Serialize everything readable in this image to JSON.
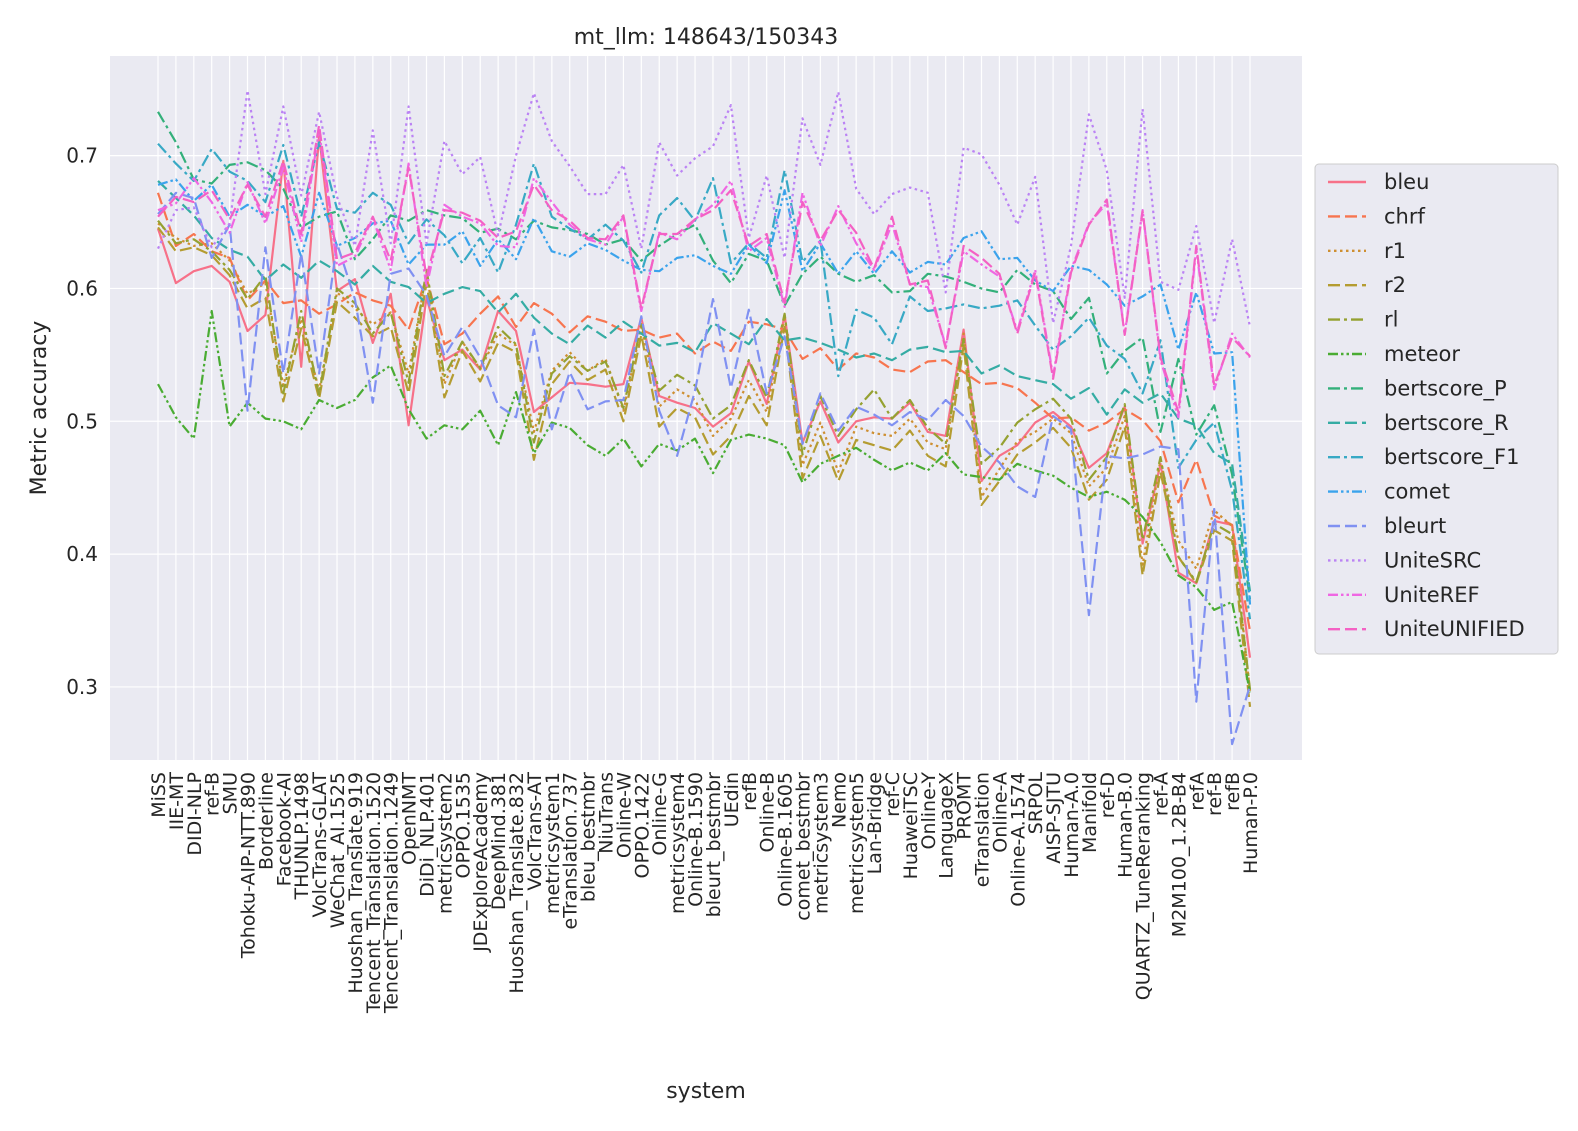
{
  "chart_data": {
    "type": "line",
    "title": "mt_llm: 148643/150343",
    "xlabel": "system",
    "ylabel": "Metric accuracy",
    "ylim": [
      0.245,
      0.775
    ],
    "yticks": [
      0.3,
      0.4,
      0.5,
      0.6,
      0.7
    ],
    "grid": true,
    "legend_position": "right",
    "categories": [
      "MiSS",
      "IIE-MT",
      "DIDI-NLP",
      "ref-B",
      "SMU",
      "Tohoku-AIP-NTT.890",
      "Borderline",
      "Facebook-AI",
      "THUNLP.1498",
      "VolcTrans-GLAT",
      "WeChat_AI.1525",
      "Huoshan_Translate.919",
      "Tencent_Translation.1520",
      "Tencent_Translation.1249",
      "OpenNMT",
      "DiDi_NLP.401",
      "metricsystem2",
      "OPPO.1535",
      "JDExploreAcademy",
      "DeepMind.381",
      "Huoshan_Translate.832",
      "VolcTrans-AT",
      "metricsystem1",
      "eTranslation.737",
      "bleu_bestmbr",
      "NiuTrans",
      "Online-W",
      "OPPO.1422",
      "Online-G",
      "metricsystem4",
      "Online-B.1590",
      "bleurt_bestmbr",
      "UEdin",
      "refB",
      "Online-B",
      "Online-B.1605",
      "comet_bestmbr",
      "metricsystem3",
      "Nemo",
      "metricsystem5",
      "Lan-Bridge",
      "ref-C",
      "HuaweiTSC",
      "Online-Y",
      "LanguageX",
      "PROMT",
      "eTranslation",
      "Online-A",
      "Online-A.1574",
      "SRPOL",
      "AISP-SJTU",
      "Human-A.0",
      "Manifold",
      "ref-D",
      "Human-B.0",
      "QUARTZ_TuneReranking",
      "ref-A",
      "M2M100_1.2B-B4",
      "refA",
      "ref-B",
      "refB",
      "Human-P.0"
    ],
    "series": [
      {
        "name": "bleu",
        "color": "#f77189",
        "dash": "solid",
        "values": [
          0.645,
          0.604,
          0.613,
          0.617,
          0.605,
          0.568,
          0.58,
          0.696,
          0.541,
          0.715,
          0.598,
          0.607,
          0.559,
          0.596,
          0.497,
          0.593,
          0.546,
          0.554,
          0.539,
          0.583,
          0.568,
          0.507,
          0.518,
          0.529,
          0.528,
          0.526,
          0.528,
          0.578,
          0.519,
          0.514,
          0.51,
          0.496,
          0.506,
          0.545,
          0.513,
          0.58,
          0.484,
          0.515,
          0.484,
          0.5,
          0.503,
          0.502,
          0.514,
          0.492,
          0.489,
          0.569,
          0.455,
          0.474,
          0.482,
          0.499,
          0.507,
          0.496,
          0.465,
          0.476,
          0.511,
          0.408,
          0.468,
          0.386,
          0.378,
          0.425,
          0.422,
          0.322
        ]
      },
      {
        "name": "chrf",
        "color": "#f7754f",
        "dash": "dash",
        "values": [
          0.672,
          0.632,
          0.641,
          0.628,
          0.623,
          0.591,
          0.606,
          0.589,
          0.591,
          0.581,
          0.588,
          0.597,
          0.591,
          0.587,
          0.569,
          0.608,
          0.558,
          0.566,
          0.581,
          0.594,
          0.571,
          0.589,
          0.581,
          0.567,
          0.579,
          0.575,
          0.568,
          0.569,
          0.563,
          0.566,
          0.551,
          0.56,
          0.553,
          0.575,
          0.573,
          0.569,
          0.547,
          0.555,
          0.539,
          0.551,
          0.548,
          0.539,
          0.537,
          0.545,
          0.546,
          0.537,
          0.528,
          0.529,
          0.525,
          0.514,
          0.502,
          0.503,
          0.493,
          0.499,
          0.509,
          0.501,
          0.485,
          0.439,
          0.471,
          0.429,
          0.422,
          0.342
        ]
      },
      {
        "name": "r1",
        "color": "#ce8f31",
        "dash": "dot",
        "values": [
          0.649,
          0.638,
          0.632,
          0.634,
          0.621,
          0.596,
          0.604,
          0.527,
          0.577,
          0.523,
          0.597,
          0.585,
          0.573,
          0.582,
          0.536,
          0.612,
          0.528,
          0.56,
          0.539,
          0.566,
          0.557,
          0.492,
          0.538,
          0.552,
          0.538,
          0.547,
          0.508,
          0.571,
          0.511,
          0.524,
          0.516,
          0.489,
          0.502,
          0.531,
          0.507,
          0.579,
          0.467,
          0.499,
          0.462,
          0.496,
          0.491,
          0.489,
          0.502,
          0.484,
          0.479,
          0.566,
          0.443,
          0.464,
          0.485,
          0.492,
          0.502,
          0.491,
          0.451,
          0.465,
          0.504,
          0.392,
          0.471,
          0.41,
          0.389,
          0.433,
          0.421,
          0.297
        ]
      },
      {
        "name": "r2",
        "color": "#b49c31",
        "dash": "dash",
        "values": [
          0.646,
          0.628,
          0.631,
          0.625,
          0.61,
          0.585,
          0.593,
          0.515,
          0.57,
          0.517,
          0.59,
          0.578,
          0.564,
          0.571,
          0.521,
          0.604,
          0.518,
          0.553,
          0.53,
          0.559,
          0.552,
          0.471,
          0.528,
          0.545,
          0.531,
          0.539,
          0.5,
          0.565,
          0.496,
          0.51,
          0.503,
          0.475,
          0.489,
          0.519,
          0.497,
          0.571,
          0.457,
          0.489,
          0.455,
          0.486,
          0.482,
          0.478,
          0.493,
          0.474,
          0.466,
          0.557,
          0.437,
          0.455,
          0.475,
          0.484,
          0.495,
          0.48,
          0.441,
          0.456,
          0.496,
          0.384,
          0.462,
          0.398,
          0.378,
          0.418,
          0.41,
          0.285
        ]
      },
      {
        "name": "rl",
        "color": "#95a131",
        "dash": "dashdot",
        "values": [
          0.651,
          0.634,
          0.637,
          0.628,
          0.614,
          0.592,
          0.61,
          0.521,
          0.583,
          0.52,
          0.6,
          0.589,
          0.566,
          0.582,
          0.529,
          0.614,
          0.534,
          0.56,
          0.54,
          0.571,
          0.558,
          0.484,
          0.536,
          0.549,
          0.538,
          0.545,
          0.51,
          0.573,
          0.523,
          0.535,
          0.527,
          0.502,
          0.512,
          0.546,
          0.518,
          0.581,
          0.475,
          0.519,
          0.489,
          0.509,
          0.524,
          0.502,
          0.516,
          0.495,
          0.483,
          0.562,
          0.468,
          0.48,
          0.499,
          0.509,
          0.517,
          0.502,
          0.456,
          0.473,
          0.513,
          0.411,
          0.473,
          0.398,
          0.379,
          0.423,
          0.415,
          0.298
        ]
      },
      {
        "name": "meteor",
        "color": "#4aac33",
        "dash": "dashdotdot",
        "values": [
          0.528,
          0.503,
          0.487,
          0.583,
          0.496,
          0.514,
          0.502,
          0.5,
          0.494,
          0.516,
          0.51,
          0.516,
          0.533,
          0.542,
          0.509,
          0.487,
          0.497,
          0.494,
          0.508,
          0.482,
          0.522,
          0.476,
          0.499,
          0.495,
          0.482,
          0.474,
          0.487,
          0.466,
          0.483,
          0.478,
          0.487,
          0.461,
          0.486,
          0.49,
          0.487,
          0.482,
          0.454,
          0.468,
          0.474,
          0.48,
          0.471,
          0.463,
          0.469,
          0.463,
          0.476,
          0.46,
          0.458,
          0.456,
          0.468,
          0.463,
          0.459,
          0.45,
          0.443,
          0.447,
          0.441,
          0.428,
          0.409,
          0.384,
          0.375,
          0.358,
          0.364,
          0.296
        ]
      },
      {
        "name": "bertscore_P",
        "color": "#33b07a",
        "dash": "dashdot",
        "values": [
          0.733,
          0.71,
          0.682,
          0.679,
          0.693,
          0.695,
          0.689,
          0.675,
          0.646,
          0.654,
          0.658,
          0.622,
          0.637,
          0.655,
          0.651,
          0.659,
          0.655,
          0.653,
          0.642,
          0.645,
          0.637,
          0.651,
          0.646,
          0.644,
          0.641,
          0.633,
          0.637,
          0.621,
          0.632,
          0.641,
          0.648,
          0.621,
          0.604,
          0.626,
          0.621,
          0.587,
          0.611,
          0.624,
          0.611,
          0.605,
          0.61,
          0.597,
          0.598,
          0.611,
          0.609,
          0.605,
          0.6,
          0.597,
          0.614,
          0.603,
          0.598,
          0.577,
          0.593,
          0.536,
          0.553,
          0.563,
          0.492,
          0.547,
          0.49,
          0.512,
          0.46,
          0.366
        ]
      },
      {
        "name": "bertscore_R",
        "color": "#35aca4",
        "dash": "dash",
        "values": [
          0.681,
          0.668,
          0.655,
          0.638,
          0.629,
          0.624,
          0.606,
          0.618,
          0.608,
          0.621,
          0.613,
          0.603,
          0.617,
          0.605,
          0.601,
          0.589,
          0.596,
          0.601,
          0.598,
          0.582,
          0.596,
          0.578,
          0.566,
          0.558,
          0.572,
          0.563,
          0.575,
          0.566,
          0.557,
          0.559,
          0.552,
          0.574,
          0.566,
          0.558,
          0.577,
          0.561,
          0.563,
          0.559,
          0.554,
          0.548,
          0.551,
          0.546,
          0.554,
          0.556,
          0.552,
          0.553,
          0.536,
          0.542,
          0.534,
          0.531,
          0.528,
          0.517,
          0.525,
          0.505,
          0.524,
          0.514,
          0.521,
          0.502,
          0.497,
          0.476,
          0.468,
          0.372
        ]
      },
      {
        "name": "bertscore_F1",
        "color": "#38a9c5",
        "dash": "dashdot",
        "values": [
          0.709,
          0.694,
          0.681,
          0.705,
          0.688,
          0.681,
          0.665,
          0.708,
          0.654,
          0.71,
          0.66,
          0.657,
          0.672,
          0.663,
          0.634,
          0.652,
          0.64,
          0.619,
          0.638,
          0.612,
          0.648,
          0.694,
          0.654,
          0.645,
          0.637,
          0.648,
          0.636,
          0.612,
          0.655,
          0.668,
          0.651,
          0.683,
          0.619,
          0.634,
          0.623,
          0.689,
          0.62,
          0.636,
          0.534,
          0.584,
          0.578,
          0.558,
          0.594,
          0.583,
          0.585,
          0.588,
          0.585,
          0.587,
          0.591,
          0.572,
          0.554,
          0.564,
          0.578,
          0.557,
          0.547,
          0.521,
          0.561,
          0.465,
          0.486,
          0.499,
          0.448,
          0.351
        ]
      },
      {
        "name": "comet",
        "color": "#3ba3ec",
        "dash": "dashdotdot",
        "values": [
          0.678,
          0.682,
          0.666,
          0.678,
          0.654,
          0.663,
          0.654,
          0.662,
          0.624,
          0.672,
          0.632,
          0.638,
          0.649,
          0.651,
          0.618,
          0.633,
          0.633,
          0.643,
          0.617,
          0.637,
          0.622,
          0.653,
          0.628,
          0.624,
          0.634,
          0.629,
          0.621,
          0.614,
          0.613,
          0.623,
          0.625,
          0.617,
          0.611,
          0.633,
          0.619,
          0.674,
          0.613,
          0.634,
          0.611,
          0.628,
          0.611,
          0.628,
          0.612,
          0.62,
          0.618,
          0.638,
          0.643,
          0.622,
          0.623,
          0.606,
          0.598,
          0.617,
          0.614,
          0.603,
          0.587,
          0.594,
          0.603,
          0.554,
          0.597,
          0.551,
          0.552,
          0.362
        ]
      },
      {
        "name": "bleurt",
        "color": "#8091f2",
        "dash": "dash",
        "values": [
          0.656,
          0.672,
          0.668,
          0.623,
          0.648,
          0.508,
          0.631,
          0.536,
          0.626,
          0.536,
          0.634,
          0.592,
          0.514,
          0.611,
          0.615,
          0.595,
          0.549,
          0.571,
          0.548,
          0.512,
          0.503,
          0.569,
          0.494,
          0.537,
          0.509,
          0.515,
          0.516,
          0.579,
          0.508,
          0.474,
          0.523,
          0.592,
          0.525,
          0.584,
          0.521,
          0.564,
          0.483,
          0.521,
          0.493,
          0.511,
          0.505,
          0.497,
          0.507,
          0.501,
          0.516,
          0.504,
          0.481,
          0.469,
          0.451,
          0.443,
          0.504,
          0.494,
          0.354,
          0.474,
          0.472,
          0.475,
          0.481,
          0.479,
          0.289,
          0.434,
          0.257,
          0.301
        ]
      },
      {
        "name": "UniteSRC",
        "color": "#bb83f4",
        "dash": "dot",
        "values": [
          0.63,
          0.659,
          0.661,
          0.631,
          0.649,
          0.749,
          0.671,
          0.737,
          0.67,
          0.733,
          0.669,
          0.632,
          0.719,
          0.634,
          0.737,
          0.634,
          0.711,
          0.686,
          0.699,
          0.64,
          0.7,
          0.747,
          0.711,
          0.692,
          0.671,
          0.671,
          0.693,
          0.63,
          0.71,
          0.685,
          0.698,
          0.707,
          0.738,
          0.638,
          0.685,
          0.623,
          0.728,
          0.693,
          0.748,
          0.675,
          0.656,
          0.671,
          0.676,
          0.672,
          0.597,
          0.706,
          0.701,
          0.678,
          0.648,
          0.684,
          0.574,
          0.632,
          0.731,
          0.689,
          0.593,
          0.735,
          0.605,
          0.599,
          0.647,
          0.574,
          0.637,
          0.571
        ]
      },
      {
        "name": "UniteREF",
        "color": "#ef67e3",
        "dash": "dashdotdot",
        "values": [
          0.659,
          0.664,
          0.683,
          0.665,
          0.642,
          0.68,
          0.649,
          0.691,
          0.635,
          0.719,
          0.617,
          0.624,
          0.653,
          0.614,
          0.694,
          0.601,
          0.663,
          0.654,
          0.649,
          0.632,
          0.631,
          0.683,
          0.665,
          0.648,
          0.637,
          0.633,
          0.654,
          0.583,
          0.642,
          0.637,
          0.652,
          0.663,
          0.681,
          0.628,
          0.638,
          0.586,
          0.672,
          0.632,
          0.662,
          0.634,
          0.614,
          0.649,
          0.603,
          0.601,
          0.557,
          0.628,
          0.618,
          0.609,
          0.568,
          0.614,
          0.534,
          0.614,
          0.649,
          0.664,
          0.566,
          0.659,
          0.546,
          0.503,
          0.63,
          0.524,
          0.566,
          0.548
        ]
      },
      {
        "name": "UniteUNIFIED",
        "color": "#f461c4",
        "dash": "dash",
        "values": [
          0.654,
          0.669,
          0.665,
          0.674,
          0.652,
          0.678,
          0.654,
          0.696,
          0.641,
          0.723,
          0.622,
          0.627,
          0.654,
          0.621,
          0.691,
          0.609,
          0.659,
          0.657,
          0.651,
          0.638,
          0.643,
          0.678,
          0.659,
          0.651,
          0.638,
          0.637,
          0.655,
          0.585,
          0.641,
          0.641,
          0.652,
          0.659,
          0.674,
          0.632,
          0.641,
          0.589,
          0.665,
          0.636,
          0.659,
          0.642,
          0.615,
          0.654,
          0.603,
          0.606,
          0.555,
          0.632,
          0.623,
          0.611,
          0.566,
          0.612,
          0.532,
          0.612,
          0.648,
          0.667,
          0.565,
          0.658,
          0.548,
          0.507,
          0.632,
          0.527,
          0.563,
          0.549
        ]
      }
    ]
  }
}
